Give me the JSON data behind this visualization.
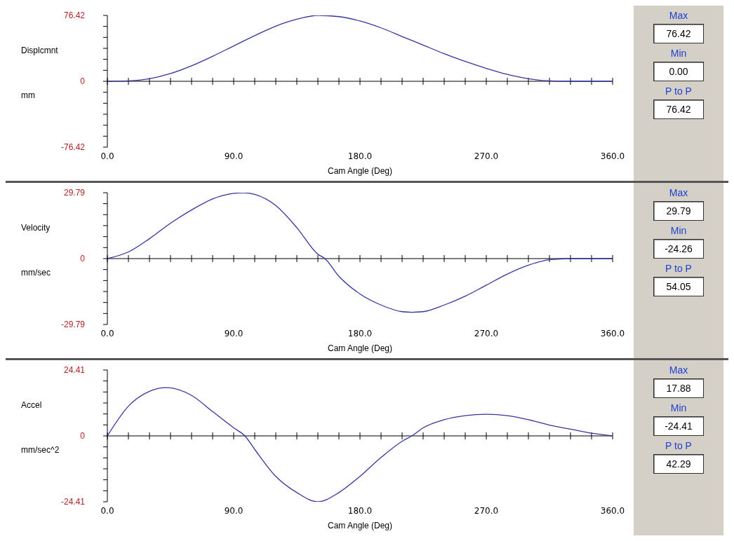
{
  "chart_data": [
    {
      "type": "line",
      "ylabel": "Displcmnt mm",
      "xlabel": "Cam Angle (Deg)",
      "marker": "none",
      "line_style": "solid",
      "legend": false,
      "x": [
        0,
        15,
        30,
        45,
        60,
        75,
        90,
        105,
        120,
        135,
        150,
        165,
        180,
        195,
        210,
        225,
        240,
        255,
        270,
        285,
        300,
        315,
        330,
        345,
        360
      ],
      "series": [
        {
          "color": "#3535a0",
          "values": [
            0,
            0.5,
            3,
            9,
            18,
            29,
            41,
            53,
            64,
            72,
            76.42,
            75,
            70,
            62,
            52,
            42,
            32,
            23,
            15,
            8,
            3,
            0.5,
            0,
            0,
            0
          ]
        }
      ],
      "xlim": [
        0,
        360
      ],
      "xticks": [
        {
          "value": 0,
          "label": "0.0"
        },
        {
          "value": 15,
          "label": null
        },
        {
          "value": 30,
          "label": null
        },
        {
          "value": 45,
          "label": null
        },
        {
          "value": 60,
          "label": null
        },
        {
          "value": 75,
          "label": null
        },
        {
          "value": 90,
          "label": "90.0"
        },
        {
          "value": 105,
          "label": null
        },
        {
          "value": 120,
          "label": null
        },
        {
          "value": 135,
          "label": null
        },
        {
          "value": 150,
          "label": null
        },
        {
          "value": 165,
          "label": null
        },
        {
          "value": 180,
          "label": "180.0"
        },
        {
          "value": 195,
          "label": null
        },
        {
          "value": 210,
          "label": null
        },
        {
          "value": 225,
          "label": null
        },
        {
          "value": 240,
          "label": null
        },
        {
          "value": 255,
          "label": null
        },
        {
          "value": 270,
          "label": "270.0"
        },
        {
          "value": 285,
          "label": null
        },
        {
          "value": 300,
          "label": null
        },
        {
          "value": 315,
          "label": null
        },
        {
          "value": 330,
          "label": null
        },
        {
          "value": 345,
          "label": null
        },
        {
          "value": 360,
          "label": "360.0"
        }
      ],
      "ylim": [
        -76.42,
        76.42
      ],
      "yticks": [
        -76.42,
        {
          "value": -63.68,
          "label": null
        },
        {
          "value": -50.95,
          "label": null
        },
        {
          "value": -38.21,
          "label": null
        },
        {
          "value": -25.47,
          "label": null
        },
        {
          "value": -12.74,
          "label": null
        },
        0,
        {
          "value": 12.74,
          "label": null
        },
        {
          "value": 25.47,
          "label": null
        },
        {
          "value": 38.21,
          "label": null
        },
        {
          "value": 50.95,
          "label": null
        },
        {
          "value": 63.68,
          "label": null
        },
        76.42
      ],
      "annotations": [
        "Max",
        "76.42",
        "Min",
        "0.00",
        "P to P",
        "76.42"
      ]
    },
    {
      "type": "line",
      "ylabel": "Velocity mm/sec",
      "xlabel": "Cam Angle (Deg)",
      "marker": "none",
      "line_style": "solid",
      "legend": false,
      "x": [
        0,
        15,
        30,
        45,
        60,
        75,
        90,
        97,
        105,
        120,
        135,
        150,
        155,
        165,
        180,
        195,
        210,
        217,
        225,
        240,
        255,
        270,
        285,
        300,
        315,
        330,
        345,
        360
      ],
      "series": [
        {
          "color": "#3535a0",
          "values": [
            0,
            3,
            9,
            16,
            22,
            27,
            29.5,
            29.79,
            29,
            24,
            14,
            2,
            0,
            -8,
            -16,
            -21,
            -24,
            -24.26,
            -24,
            -21,
            -17,
            -12,
            -7,
            -3,
            -0.5,
            0,
            0,
            0
          ]
        }
      ],
      "xlim": [
        0,
        360
      ],
      "xticks": [
        {
          "value": 0,
          "label": "0.0"
        },
        {
          "value": 15,
          "label": null
        },
        {
          "value": 30,
          "label": null
        },
        {
          "value": 45,
          "label": null
        },
        {
          "value": 60,
          "label": null
        },
        {
          "value": 75,
          "label": null
        },
        {
          "value": 90,
          "label": "90.0"
        },
        {
          "value": 105,
          "label": null
        },
        {
          "value": 120,
          "label": null
        },
        {
          "value": 135,
          "label": null
        },
        {
          "value": 150,
          "label": null
        },
        {
          "value": 165,
          "label": null
        },
        {
          "value": 180,
          "label": "180.0"
        },
        {
          "value": 195,
          "label": null
        },
        {
          "value": 210,
          "label": null
        },
        {
          "value": 225,
          "label": null
        },
        {
          "value": 240,
          "label": null
        },
        {
          "value": 255,
          "label": null
        },
        {
          "value": 270,
          "label": "270.0"
        },
        {
          "value": 285,
          "label": null
        },
        {
          "value": 300,
          "label": null
        },
        {
          "value": 315,
          "label": null
        },
        {
          "value": 330,
          "label": null
        },
        {
          "value": 345,
          "label": null
        },
        {
          "value": 360,
          "label": "360.0"
        }
      ],
      "ylim": [
        -29.79,
        29.79
      ],
      "yticks": [
        -29.79,
        {
          "value": -24.83,
          "label": null
        },
        {
          "value": -19.86,
          "label": null
        },
        {
          "value": -14.9,
          "label": null
        },
        {
          "value": -9.93,
          "label": null
        },
        {
          "value": -4.97,
          "label": null
        },
        0,
        {
          "value": 4.97,
          "label": null
        },
        {
          "value": 9.93,
          "label": null
        },
        {
          "value": 14.9,
          "label": null
        },
        {
          "value": 19.86,
          "label": null
        },
        {
          "value": 24.83,
          "label": null
        },
        29.79
      ],
      "annotations": [
        "Max",
        "29.79",
        "Min",
        "-24.26",
        "P to P",
        "54.05"
      ]
    },
    {
      "type": "line",
      "ylabel": "Accel mm/sec^2",
      "xlabel": "Cam Angle (Deg)",
      "marker": "none",
      "line_style": "solid",
      "legend": false,
      "x": [
        0,
        15,
        30,
        42,
        60,
        75,
        90,
        98,
        105,
        120,
        135,
        150,
        165,
        180,
        195,
        210,
        217,
        225,
        240,
        255,
        270,
        285,
        300,
        315,
        330,
        345,
        360
      ],
      "series": [
        {
          "color": "#3535a0",
          "values": [
            0,
            11,
            16.5,
            17.88,
            15,
            9,
            3,
            0,
            -5,
            -15,
            -21,
            -24.41,
            -21,
            -15,
            -8,
            -2,
            0,
            3,
            6,
            7.5,
            8,
            7.5,
            6,
            4,
            2.5,
            1,
            0
          ]
        }
      ],
      "xlim": [
        0,
        360
      ],
      "xticks": [
        {
          "value": 0,
          "label": "0.0"
        },
        {
          "value": 15,
          "label": null
        },
        {
          "value": 30,
          "label": null
        },
        {
          "value": 45,
          "label": null
        },
        {
          "value": 60,
          "label": null
        },
        {
          "value": 75,
          "label": null
        },
        {
          "value": 90,
          "label": "90.0"
        },
        {
          "value": 105,
          "label": null
        },
        {
          "value": 120,
          "label": null
        },
        {
          "value": 135,
          "label": null
        },
        {
          "value": 150,
          "label": null
        },
        {
          "value": 165,
          "label": null
        },
        {
          "value": 180,
          "label": "180.0"
        },
        {
          "value": 195,
          "label": null
        },
        {
          "value": 210,
          "label": null
        },
        {
          "value": 225,
          "label": null
        },
        {
          "value": 240,
          "label": null
        },
        {
          "value": 255,
          "label": null
        },
        {
          "value": 270,
          "label": "270.0"
        },
        {
          "value": 285,
          "label": null
        },
        {
          "value": 300,
          "label": null
        },
        {
          "value": 315,
          "label": null
        },
        {
          "value": 330,
          "label": null
        },
        {
          "value": 345,
          "label": null
        },
        {
          "value": 360,
          "label": "360.0"
        }
      ],
      "ylim": [
        -24.41,
        24.41
      ],
      "yticks": [
        -24.41,
        {
          "value": -20.34,
          "label": null
        },
        {
          "value": -16.27,
          "label": null
        },
        {
          "value": -12.2,
          "label": null
        },
        {
          "value": -8.14,
          "label": null
        },
        {
          "value": -4.07,
          "label": null
        },
        0,
        {
          "value": 4.07,
          "label": null
        },
        {
          "value": 8.14,
          "label": null
        },
        {
          "value": 12.2,
          "label": null
        },
        {
          "value": 16.27,
          "label": null
        },
        {
          "value": 20.34,
          "label": null
        },
        24.41
      ],
      "annotations": [
        "Max",
        "17.88",
        "Min",
        "-24.41",
        "P to P",
        "42.29"
      ]
    }
  ]
}
